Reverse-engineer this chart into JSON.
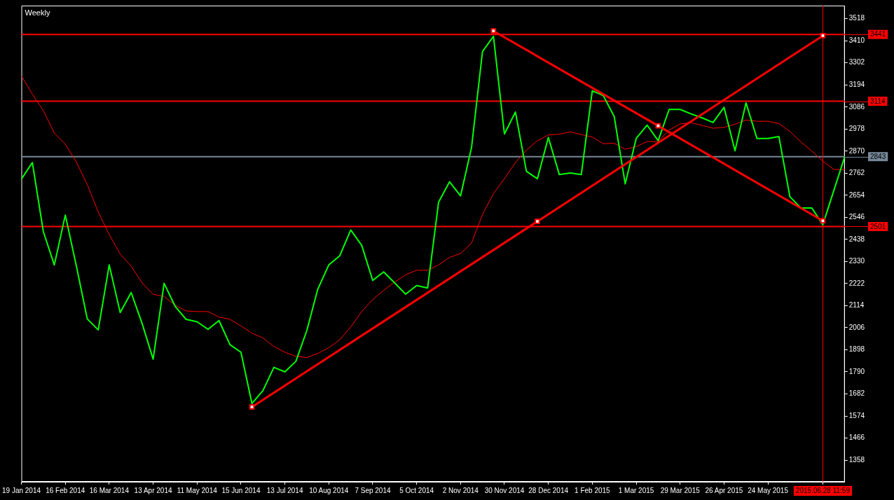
{
  "chart_data": {
    "type": "line",
    "title": "Weekly",
    "categories": [
      "19 Jan 2014",
      null,
      null,
      null,
      "16 Feb 2014",
      null,
      null,
      null,
      "16 Mar 2014",
      null,
      null,
      null,
      "13 Apr 2014",
      null,
      null,
      null,
      "11 May 2014",
      null,
      null,
      null,
      "15 Jun 2014",
      null,
      null,
      null,
      "13 Jul 2014",
      null,
      null,
      null,
      "10 Aug 2014",
      null,
      null,
      null,
      "7 Sep 2014",
      null,
      null,
      null,
      "5 Oct 2014",
      null,
      null,
      null,
      "2 Nov 2014",
      null,
      null,
      null,
      "30 Nov 2014",
      null,
      null,
      null,
      "28 Dec 2014",
      null,
      null,
      null,
      "1 Feb 2015",
      null,
      null,
      null,
      "1 Mar 2015",
      null,
      null,
      null,
      "29 Mar 2015",
      null,
      null,
      null,
      "26 Apr 2015",
      null,
      null,
      null,
      "24 May 2015",
      null,
      null,
      null,
      null,
      "2015.06.28 11:59",
      null,
      null
    ],
    "series": [
      {
        "color": "#00ff00",
        "values": [
          2733,
          2814,
          2476,
          2313,
          2557,
          2310,
          2049,
          1995,
          2313,
          2080,
          2178,
          2026,
          1852,
          2223,
          2111,
          2047,
          2035,
          1998,
          2041,
          1923,
          1886,
          1635,
          1698,
          1812,
          1790,
          1841,
          1992,
          2195,
          2313,
          2358,
          2484,
          2409,
          2237,
          2279,
          2225,
          2170,
          2212,
          2200,
          2620,
          2720,
          2651,
          2887,
          3357,
          3432,
          2954,
          3061,
          2771,
          2735,
          2937,
          2755,
          2763,
          2755,
          3165,
          3142,
          3039,
          2710,
          2932,
          2997,
          2921,
          3074,
          3074,
          3052,
          3033,
          3010,
          3084,
          2872,
          3106,
          2932,
          2932,
          2941,
          2647,
          2592,
          2592,
          2510,
          2677,
          2843
        ]
      },
      {
        "color": "#ff0000",
        "values": [
          3238,
          3149,
          3068,
          2958,
          2904,
          2817,
          2707,
          2572,
          2462,
          2366,
          2307,
          2225,
          2169,
          2159,
          2116,
          2088,
          2085,
          2085,
          2058,
          2047,
          2015,
          1979,
          1956,
          1914,
          1886,
          1866,
          1860,
          1880,
          1908,
          1947,
          2009,
          2085,
          2144,
          2189,
          2229,
          2265,
          2287,
          2287,
          2313,
          2350,
          2369,
          2420,
          2560,
          2662,
          2735,
          2814,
          2875,
          2921,
          2949,
          2953,
          2964,
          2951,
          2939,
          2906,
          2909,
          2879,
          2892,
          2917,
          2917,
          2973,
          3003,
          3009,
          2996,
          2982,
          2986,
          3002,
          3022,
          3016,
          3016,
          3005,
          2966,
          2915,
          2870,
          2821,
          2780,
          2780
        ]
      },
      {
        "color": "#ff0000",
        "marker": "square",
        "values": [
          null,
          null,
          null,
          null,
          null,
          null,
          null,
          null,
          null,
          null,
          null,
          null,
          null,
          null,
          null,
          null,
          null,
          null,
          null,
          null,
          null,
          1618,
          null,
          null,
          null,
          null,
          null,
          null,
          null,
          null,
          null,
          null,
          null,
          null,
          null,
          null,
          null,
          null,
          null,
          null,
          null,
          null,
          null,
          null,
          null,
          null,
          null,
          2526,
          null,
          null,
          null,
          null,
          null,
          null,
          null,
          null,
          null,
          null,
          null,
          null,
          null,
          null,
          null,
          null,
          null,
          null,
          null,
          null,
          null,
          null,
          null,
          null,
          null,
          3435,
          null,
          null
        ]
      },
      {
        "color": "#ff0000",
        "marker": "square",
        "values": [
          null,
          null,
          null,
          null,
          null,
          null,
          null,
          null,
          null,
          null,
          null,
          null,
          null,
          null,
          null,
          null,
          null,
          null,
          null,
          null,
          null,
          null,
          null,
          null,
          null,
          null,
          null,
          null,
          null,
          null,
          null,
          null,
          null,
          null,
          null,
          null,
          null,
          null,
          null,
          null,
          null,
          null,
          null,
          3458,
          null,
          null,
          null,
          null,
          null,
          null,
          null,
          null,
          null,
          null,
          null,
          null,
          null,
          null,
          2994,
          null,
          null,
          null,
          null,
          null,
          null,
          null,
          null,
          null,
          null,
          null,
          null,
          null,
          null,
          2529,
          null,
          null
        ]
      }
    ],
    "ylim": [
      1252,
      3582
    ],
    "yticks": [
      1358,
      1466,
      1574,
      1682,
      1790,
      1898,
      2006,
      2114,
      2222,
      2330,
      2438,
      2546,
      2654,
      2762,
      2870,
      2978,
      3086,
      3194,
      3302,
      3410,
      3518
    ],
    "ref_lines": [
      {
        "axis": "y",
        "value": 3441,
        "label": "3441",
        "color": "#ff0000"
      },
      {
        "axis": "y",
        "value": 3114,
        "label": "3114",
        "color": "#ff0000"
      },
      {
        "axis": "y",
        "value": 2501,
        "label": "2501",
        "color": "#ff0000"
      },
      {
        "axis": "y",
        "value": 2843,
        "label": "2843",
        "color": "#778899"
      },
      {
        "axis": "x",
        "value": "2015.06.28 11:59",
        "color": "#ff0000"
      }
    ]
  }
}
